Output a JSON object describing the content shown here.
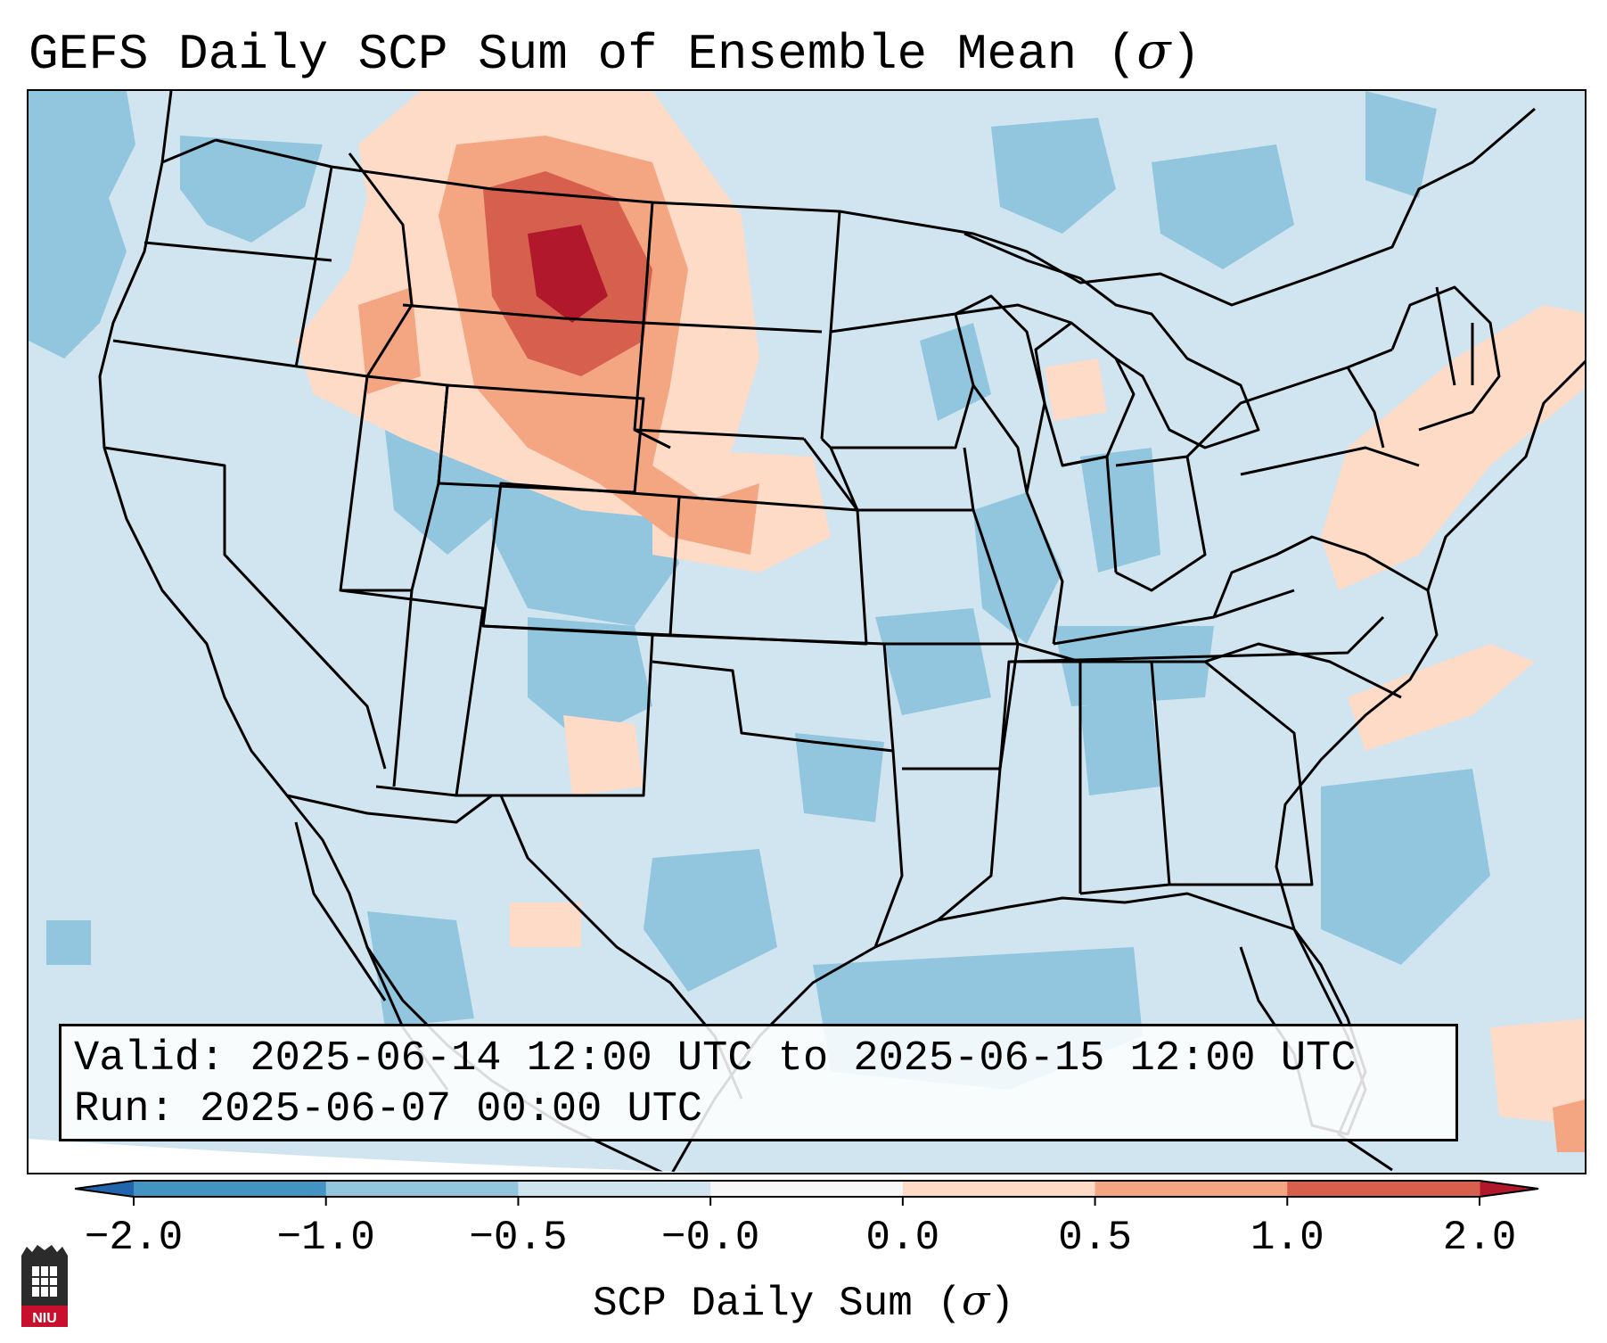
{
  "title": {
    "prefix": "GEFS Daily SCP Sum of Ensemble Mean (",
    "symbol": "σ",
    "suffix": ")"
  },
  "info": {
    "valid_label": "Valid:",
    "valid_value": "2025-06-14 12:00 UTC to 2025-06-15 12:00 UTC",
    "run_label": "Run:",
    "run_value": "2025-06-07 00:00 UTC"
  },
  "colorbar": {
    "ticks": [
      "−2.0",
      "−1.0",
      "−0.5",
      "−0.0",
      "0.0",
      "0.5",
      "1.0",
      "2.0"
    ],
    "label_prefix": "SCP Daily Sum (",
    "label_symbol": "σ",
    "label_suffix": ")",
    "colors": [
      "#4393c3",
      "#92c5de",
      "#d1e5f0",
      "#f7f7f7",
      "#fddbc7",
      "#f4a582",
      "#d6604d"
    ],
    "under_color": "#2166ac",
    "over_color": "#b2182b"
  },
  "logo": {
    "text": "NIU"
  },
  "map": {
    "base_color": "#d1e5f0",
    "ocean_offgrid_color": "#ffffff"
  }
}
